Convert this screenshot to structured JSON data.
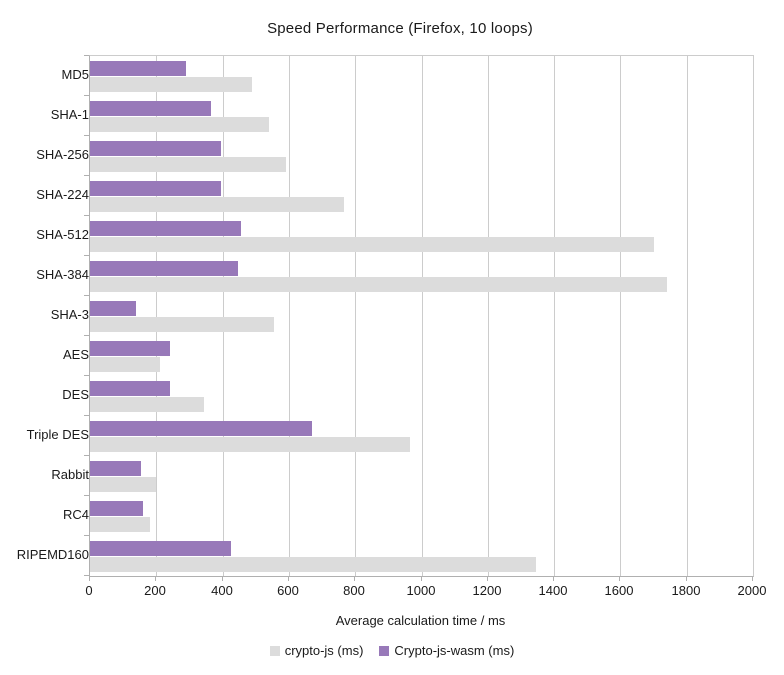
{
  "chart_data": {
    "type": "bar",
    "orientation": "horizontal",
    "title": "Speed Performance (Firefox, 10 loops)",
    "xlabel": "Average calculation time / ms",
    "ylabel": "",
    "xlim": [
      0,
      2000
    ],
    "xticks": [
      0,
      200,
      400,
      600,
      800,
      1000,
      1200,
      1400,
      1600,
      1800,
      2000
    ],
    "grid": true,
    "legend_position": "bottom",
    "categories": [
      "MD5",
      "SHA-1",
      "SHA-256",
      "SHA-224",
      "SHA-512",
      "SHA-384",
      "SHA-3",
      "AES",
      "DES",
      "Triple DES",
      "Rabbit",
      "RC4",
      "RIPEMD160"
    ],
    "series": [
      {
        "name": "crypto-js (ms)",
        "color": "#dcdcdc",
        "values": [
          490,
          540,
          590,
          765,
          1700,
          1740,
          555,
          210,
          345,
          965,
          200,
          180,
          1345
        ]
      },
      {
        "name": "Crypto-js-wasm (ms)",
        "color": "#9879b9",
        "values": [
          290,
          365,
          395,
          395,
          455,
          445,
          140,
          240,
          240,
          670,
          155,
          160,
          425
        ]
      }
    ]
  },
  "colors": {
    "background": "#ffffff",
    "gridline": "#cccccc",
    "axis": "#b0b0b0",
    "text": "#1a1a1a"
  }
}
